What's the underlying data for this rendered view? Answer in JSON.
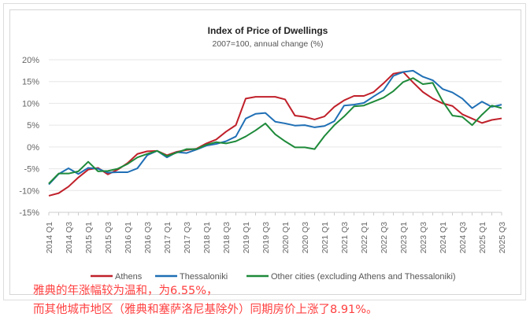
{
  "chart_data": {
    "type": "line",
    "title": "Index of Price of Dwellings",
    "subtitle": "2007=100, annual change (%)",
    "ylim": [
      -15,
      20
    ],
    "yticks": [
      20,
      15,
      10,
      5,
      0,
      -5,
      -10,
      -15
    ],
    "ytick_labels": [
      "20%",
      "15%",
      "10%",
      "5%",
      "0%",
      "-5%",
      "-10%",
      "-15%"
    ],
    "x_tick_labels": [
      "2014 Q1",
      "2014 Q3",
      "2015 Q1",
      "2015 Q3",
      "2016 Q1",
      "2016 Q3",
      "2017 Q1",
      "2017 Q3",
      "2018 Q1",
      "2018 Q3",
      "2019 Q1",
      "2019 Q3",
      "2020 Q1",
      "2020 Q3",
      "2021 Q1",
      "2021 Q3",
      "2022 Q1",
      "2022 Q3",
      "2023 Q1",
      "2023 Q3",
      "2024 Q1",
      "2024 Q3",
      "2025 Q1",
      "2025 Q3"
    ],
    "n_points": 47,
    "grid": true,
    "legend_position": "bottom",
    "series": [
      {
        "name": "Athens",
        "color": "#c0202a",
        "values": [
          -11.2,
          -10.6,
          -9.1,
          -7,
          -5.2,
          -4.8,
          -6.3,
          -5.2,
          -3.7,
          -1.6,
          -1,
          -0.9,
          -1.9,
          -1.1,
          -0.7,
          -0.4,
          0.8,
          1.7,
          3.5,
          5,
          11.1,
          11.5,
          11.5,
          11.5,
          10.9,
          7.2,
          6.9,
          6.3,
          7,
          9.2,
          10.7,
          11.7,
          11.7,
          12.6,
          14.6,
          16.8,
          17.2,
          14.8,
          12.6,
          11.1,
          10,
          9.4,
          7.5,
          6.5,
          5.5,
          6.2,
          6.55
        ]
      },
      {
        "name": "Thessaloniki",
        "color": "#1f6fb5",
        "values": [
          -8.6,
          -6.2,
          -4.9,
          -6.2,
          -4.8,
          -5,
          -5.9,
          -5.8,
          -5.8,
          -4.9,
          -1.9,
          -0.9,
          -2.4,
          -1.2,
          -1.4,
          -0.6,
          0.3,
          0.7,
          1.3,
          2.4,
          6.5,
          7.6,
          7.8,
          5.8,
          5.4,
          4.9,
          5,
          4.5,
          4.8,
          5.9,
          9.5,
          9.7,
          10.1,
          11.6,
          13,
          16.3,
          17.2,
          17.5,
          16.1,
          15.3,
          13.3,
          12.5,
          11.1,
          8.9,
          10.4,
          9.2,
          9.7
        ]
      },
      {
        "name": "Other cities (excluding Athens and Thessaloniki)",
        "color": "#1e8a3a",
        "values": [
          -8.4,
          -6.1,
          -6.1,
          -5.6,
          -3.4,
          -5.6,
          -5.5,
          -5,
          -3.9,
          -2.4,
          -1.6,
          -0.9,
          -2.1,
          -1.3,
          -0.5,
          -0.5,
          0.5,
          1.1,
          0.8,
          1.3,
          2.4,
          3.8,
          5.4,
          2.9,
          1.3,
          -0.1,
          -0.1,
          -0.5,
          2.5,
          5,
          7,
          9.3,
          9.5,
          10.4,
          11.3,
          12.8,
          14.9,
          15.8,
          14.4,
          14.7,
          10.5,
          7.2,
          6.9,
          5,
          7.4,
          9.5,
          8.91
        ]
      }
    ]
  },
  "annotation": {
    "line1": "雅典的年涨幅较为温和，为6.55%，",
    "line2": "而其他城市地区（雅典和塞萨洛尼基除外）同期房价上涨了8.91%。"
  }
}
